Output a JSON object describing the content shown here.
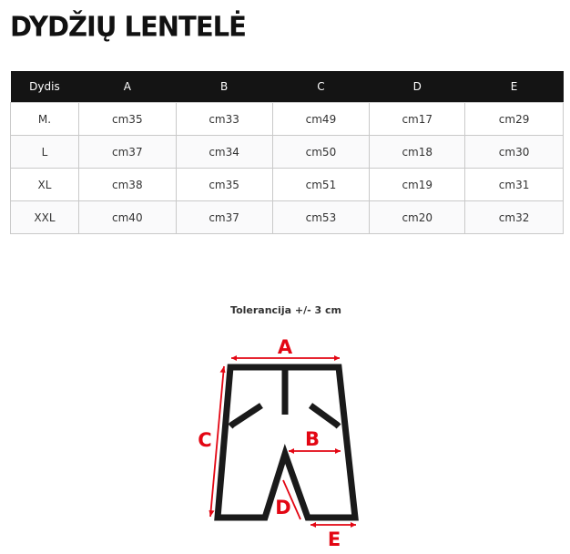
{
  "title": "DYDŽIŲ LENTELĖ",
  "table": {
    "headers": [
      "Dydis",
      "A",
      "B",
      "C",
      "D",
      "E"
    ],
    "rows": [
      [
        "M.",
        "cm35",
        "cm33",
        "cm49",
        "cm17",
        "cm29"
      ],
      [
        "L",
        "cm37",
        "cm34",
        "cm50",
        "cm18",
        "cm30"
      ],
      [
        "XL",
        "cm38",
        "cm35",
        "cm51",
        "cm19",
        "cm31"
      ],
      [
        "XXL",
        "cm40",
        "cm37",
        "cm53",
        "cm20",
        "cm32"
      ]
    ]
  },
  "diagram": {
    "tolerance": "Tolerancija +/- 3 cm",
    "labels": {
      "a": "A",
      "b": "B",
      "c": "C",
      "d": "D",
      "e": "E"
    },
    "accent_color": "#e30613"
  }
}
